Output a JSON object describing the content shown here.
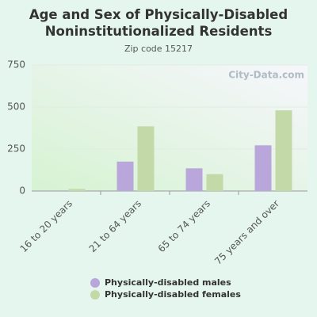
{
  "chart_data": {
    "type": "bar",
    "title": "Age and Sex of Physically-Disabled Noninstitutionalized Residents",
    "subtitle": "Zip code 15217",
    "watermark": "City-Data.com",
    "categories": [
      "16 to 20 years",
      "21 to 64 years",
      "65 to 74 years",
      "75 years and over"
    ],
    "series": [
      {
        "name": "Physically-disabled males",
        "color": "#b9a7db",
        "values": [
          0,
          175,
          135,
          272
        ]
      },
      {
        "name": "Physically-disabled females",
        "color": "#c4d9a8",
        "values": [
          12,
          385,
          100,
          480
        ]
      }
    ],
    "ylim": [
      0,
      750
    ],
    "yticks": [
      0,
      250,
      500,
      750
    ],
    "grid": true
  }
}
